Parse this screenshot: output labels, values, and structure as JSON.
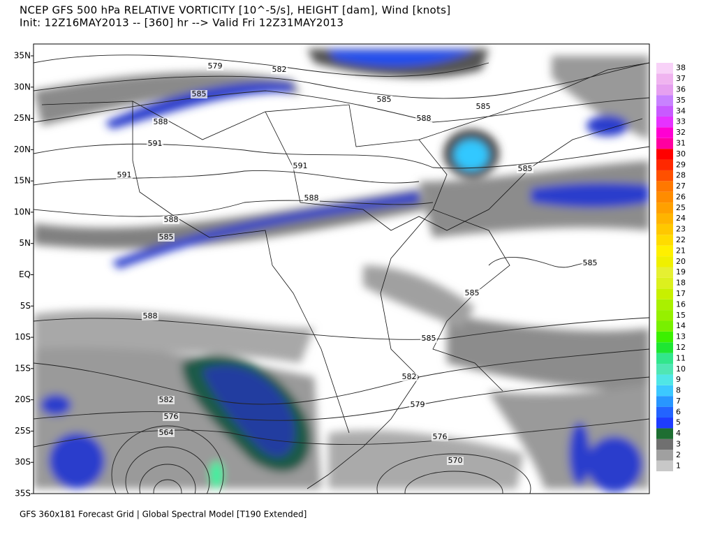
{
  "header": {
    "title": "NCEP GFS 500 hPa RELATIVE VORTICITY [10^-5/s], HEIGHT [dam], Wind [knots]",
    "subtitle": "Init: 12Z16MAY2013 -- [360] hr --> Valid Fri 12Z31MAY2013"
  },
  "map": {
    "lat_labels": [
      "35N",
      "30N",
      "25N",
      "20N",
      "15N",
      "10N",
      "5N",
      "EQ",
      "5S",
      "10S",
      "15S",
      "20S",
      "25S",
      "30S",
      "35S"
    ],
    "contour_labels": [
      "579",
      "582",
      "585",
      "588",
      "591",
      "591",
      "591",
      "588",
      "588",
      "585",
      "588",
      "585",
      "588",
      "585",
      "585",
      "585",
      "585",
      "585",
      "582",
      "582",
      "579",
      "576",
      "576",
      "564",
      "570"
    ]
  },
  "colorbar": {
    "labels": [
      1,
      2,
      3,
      4,
      5,
      6,
      7,
      8,
      9,
      10,
      11,
      12,
      13,
      14,
      15,
      16,
      17,
      18,
      19,
      20,
      21,
      22,
      23,
      24,
      25,
      26,
      27,
      28,
      29,
      30,
      31,
      32,
      33,
      34,
      35,
      36,
      37,
      38
    ],
    "colors": [
      "#c8c8c8",
      "#a0a0a0",
      "#707070",
      "#1e6e32",
      "#1e3cff",
      "#2364ff",
      "#2896ff",
      "#3cc8ff",
      "#50e6e6",
      "#50e6b4",
      "#32e68c",
      "#1ee632",
      "#3cf000",
      "#78f000",
      "#96f000",
      "#aaf000",
      "#c8f000",
      "#dcf01e",
      "#e6f032",
      "#f0f000",
      "#fff000",
      "#ffdc00",
      "#ffc800",
      "#ffb400",
      "#ffa000",
      "#ff8c00",
      "#ff7800",
      "#ff5000",
      "#ff2800",
      "#ff0000",
      "#ff00a0",
      "#ff00d2",
      "#e632ff",
      "#c85aff",
      "#c882ff",
      "#e6a0f0",
      "#f0b4f0",
      "#f8d2f8"
    ]
  },
  "footer": "GFS 360x181 Forecast Grid | Global Spectral Model [T190 Extended]"
}
